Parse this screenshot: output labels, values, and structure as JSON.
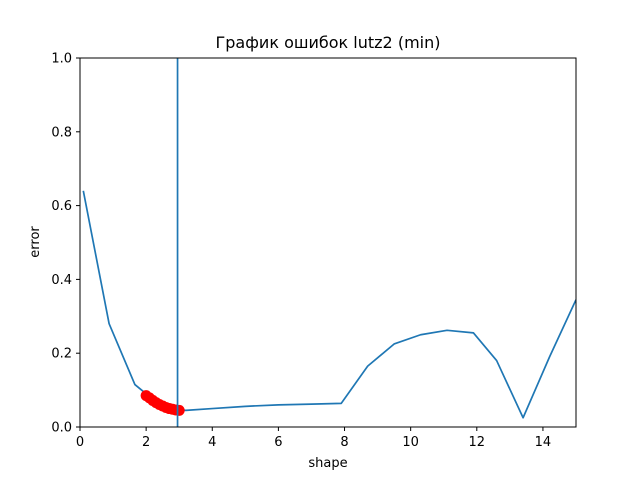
{
  "chart_data": {
    "type": "line",
    "title": "График ошибок lutz2 (min)",
    "xlabel": "shape",
    "ylabel": "error",
    "xlim": [
      0,
      15
    ],
    "ylim": [
      0,
      1
    ],
    "xticks": [
      "0",
      "2",
      "4",
      "6",
      "8",
      "10",
      "12",
      "14"
    ],
    "xtick_values": [
      0,
      2,
      4,
      6,
      8,
      10,
      12,
      14
    ],
    "yticks": [
      "0.0",
      "0.2",
      "0.4",
      "0.6",
      "0.8",
      "1.0"
    ],
    "ytick_values": [
      0,
      0.2,
      0.4,
      0.6,
      0.8,
      1.0
    ],
    "grid": false,
    "line_color": "#1f77b4",
    "series": [
      {
        "x": [
          0.1,
          0.88,
          1.66,
          2.0,
          2.2,
          2.4,
          2.6,
          2.8,
          3.0,
          3.2,
          4.0,
          5.0,
          6.0,
          7.0,
          7.9,
          8.7,
          9.5,
          10.3,
          11.1,
          11.9,
          12.6,
          13.4,
          14.2,
          15.0
        ],
        "y": [
          0.64,
          0.28,
          0.115,
          0.09,
          0.075,
          0.064,
          0.056,
          0.05,
          0.047,
          0.045,
          0.05,
          0.056,
          0.06,
          0.062,
          0.064,
          0.165,
          0.225,
          0.25,
          0.262,
          0.255,
          0.18,
          0.025,
          0.19,
          0.345
        ]
      }
    ],
    "highlight": {
      "color": "#ff0000",
      "x": [
        2.0,
        2.1,
        2.2,
        2.3,
        2.4,
        2.5,
        2.6,
        2.7,
        2.8,
        2.9,
        3.0
      ],
      "y": [
        0.085,
        0.079,
        0.072,
        0.066,
        0.061,
        0.057,
        0.053,
        0.05,
        0.048,
        0.046,
        0.045
      ]
    },
    "vline": {
      "x": 2.95,
      "color": "#1f77b4"
    }
  }
}
